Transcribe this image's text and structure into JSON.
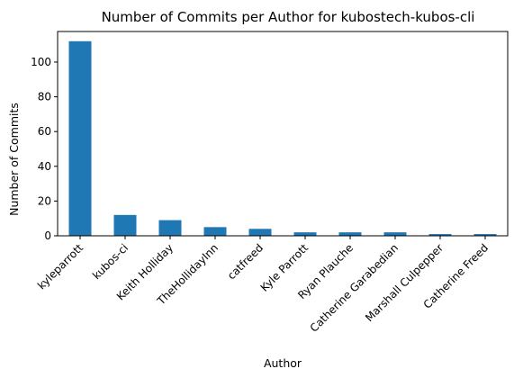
{
  "chart_data": {
    "type": "bar",
    "title": "Number of Commits per Author for kubostech-kubos-cli",
    "xlabel": "Author",
    "ylabel": "Number of Commits",
    "categories": [
      "kyleparrott",
      "kubos-ci",
      "Keith Holliday",
      "TheHollidayInn",
      "catfreed",
      "Kyle Parrott",
      "Ryan Plauche",
      "Catherine Garabedian",
      "Marshall Culpepper",
      "Catherine Freed"
    ],
    "values": [
      112,
      12,
      9,
      5,
      4,
      2,
      2,
      2,
      1,
      1
    ],
    "ylim": [
      0,
      117.6
    ],
    "yticks": [
      0,
      20,
      40,
      60,
      80,
      100
    ],
    "grid": false,
    "bar_color": "#1f77b4"
  }
}
